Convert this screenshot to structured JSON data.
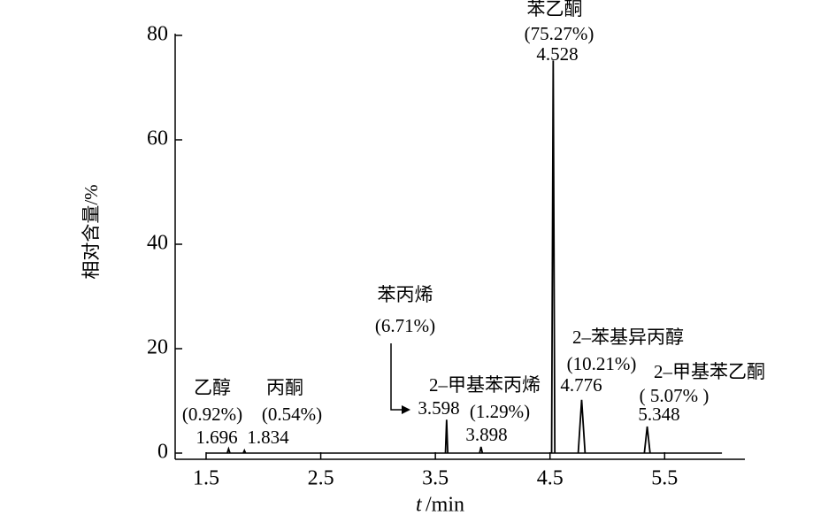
{
  "chart_data": {
    "type": "chromatogram",
    "y_label": "相对含量/%",
    "x_label": {
      "symbol": "t",
      "unit": "/min"
    },
    "xlim": [
      1.23,
      6.2
    ],
    "ylim": [
      0,
      80
    ],
    "xticks": [
      1.5,
      2.5,
      3.5,
      4.5,
      5.5
    ],
    "yticks": [
      0,
      20,
      40,
      60,
      80
    ],
    "trace_range": [
      1.5,
      6.0
    ],
    "color": "#000000",
    "peaks": [
      {
        "name": "乙醇",
        "percent": "(0.92%)",
        "time": 1.696,
        "height": 0.8
      },
      {
        "name": "丙酮",
        "percent": "(0.54%)",
        "time": 1.834,
        "height": 0.5
      },
      {
        "name": "苯丙烯",
        "percent": "(6.71%)",
        "time": 3.598,
        "height": 6.4
      },
      {
        "name": "2–甲基苯丙烯",
        "percent": "(1.29%)",
        "time": 3.898,
        "height": 1.2
      },
      {
        "name": "苯乙酮",
        "percent": "(75.27%)",
        "time": 4.528,
        "height": 75.2
      },
      {
        "name": "2–苯基异丙醇",
        "percent": "(10.21%)",
        "time": 4.776,
        "height": 10.2
      },
      {
        "name": "2–甲基苯乙酮",
        "percent": "( 5.07% )",
        "time": 5.348,
        "height": 5.1
      }
    ]
  }
}
